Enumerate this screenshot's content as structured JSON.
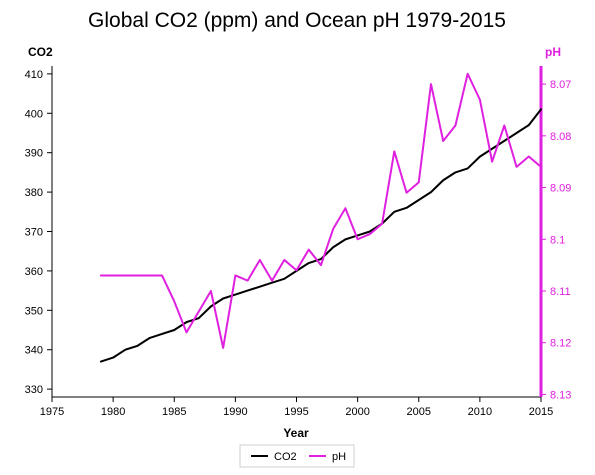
{
  "chart_data": {
    "type": "line",
    "title": "Global CO2 (ppm) and Ocean pH 1979-2015",
    "xlabel": "Year",
    "ylabel_left": "CO2",
    "ylabel_right": "pH",
    "x_range": [
      1975,
      2015
    ],
    "x_ticks": [
      1975,
      1980,
      1985,
      1990,
      1995,
      2000,
      2005,
      2010,
      2015
    ],
    "y_left_range": [
      328,
      412
    ],
    "y_left_ticks": [
      330,
      340,
      350,
      360,
      370,
      380,
      390,
      400,
      410
    ],
    "y_right_range": [
      8.1305,
      8.0665
    ],
    "y_right_ticks": [
      8.07,
      8.08,
      8.09,
      8.1,
      8.11,
      8.12,
      8.13
    ],
    "y_right_tick_labels": [
      "8.07",
      "8.08",
      "8.09",
      "8.1",
      "8.11",
      "8.12",
      "8.13"
    ],
    "grid": false,
    "legend_position": "bottom-center",
    "x": [
      1979,
      1980,
      1981,
      1982,
      1983,
      1984,
      1985,
      1986,
      1987,
      1988,
      1989,
      1990,
      1991,
      1992,
      1993,
      1994,
      1995,
      1996,
      1997,
      1998,
      1999,
      2000,
      2001,
      2002,
      2003,
      2004,
      2005,
      2006,
      2007,
      2008,
      2009,
      2010,
      2011,
      2012,
      2013,
      2014,
      2015
    ],
    "series": [
      {
        "name": "CO2",
        "axis": "left",
        "color": "#000000",
        "values": [
          337,
          338,
          340,
          341,
          343,
          344,
          345,
          347,
          348,
          351,
          353,
          354,
          355,
          356,
          357,
          358,
          360,
          362,
          363,
          366,
          368,
          369,
          370,
          372,
          375,
          376,
          378,
          380,
          383,
          385,
          386,
          389,
          391,
          393,
          395,
          397,
          401
        ]
      },
      {
        "name": "pH",
        "axis": "right",
        "color": "#e020e0",
        "values": [
          8.107,
          8.107,
          8.107,
          8.107,
          8.107,
          8.107,
          8.112,
          8.118,
          8.114,
          8.11,
          8.121,
          8.107,
          8.108,
          8.104,
          8.108,
          8.104,
          8.106,
          8.102,
          8.105,
          8.098,
          8.094,
          8.1,
          8.099,
          8.097,
          8.083,
          8.091,
          8.089,
          8.07,
          8.081,
          8.078,
          8.068,
          8.073,
          8.085,
          8.078,
          8.086,
          8.084,
          8.086
        ]
      }
    ]
  }
}
